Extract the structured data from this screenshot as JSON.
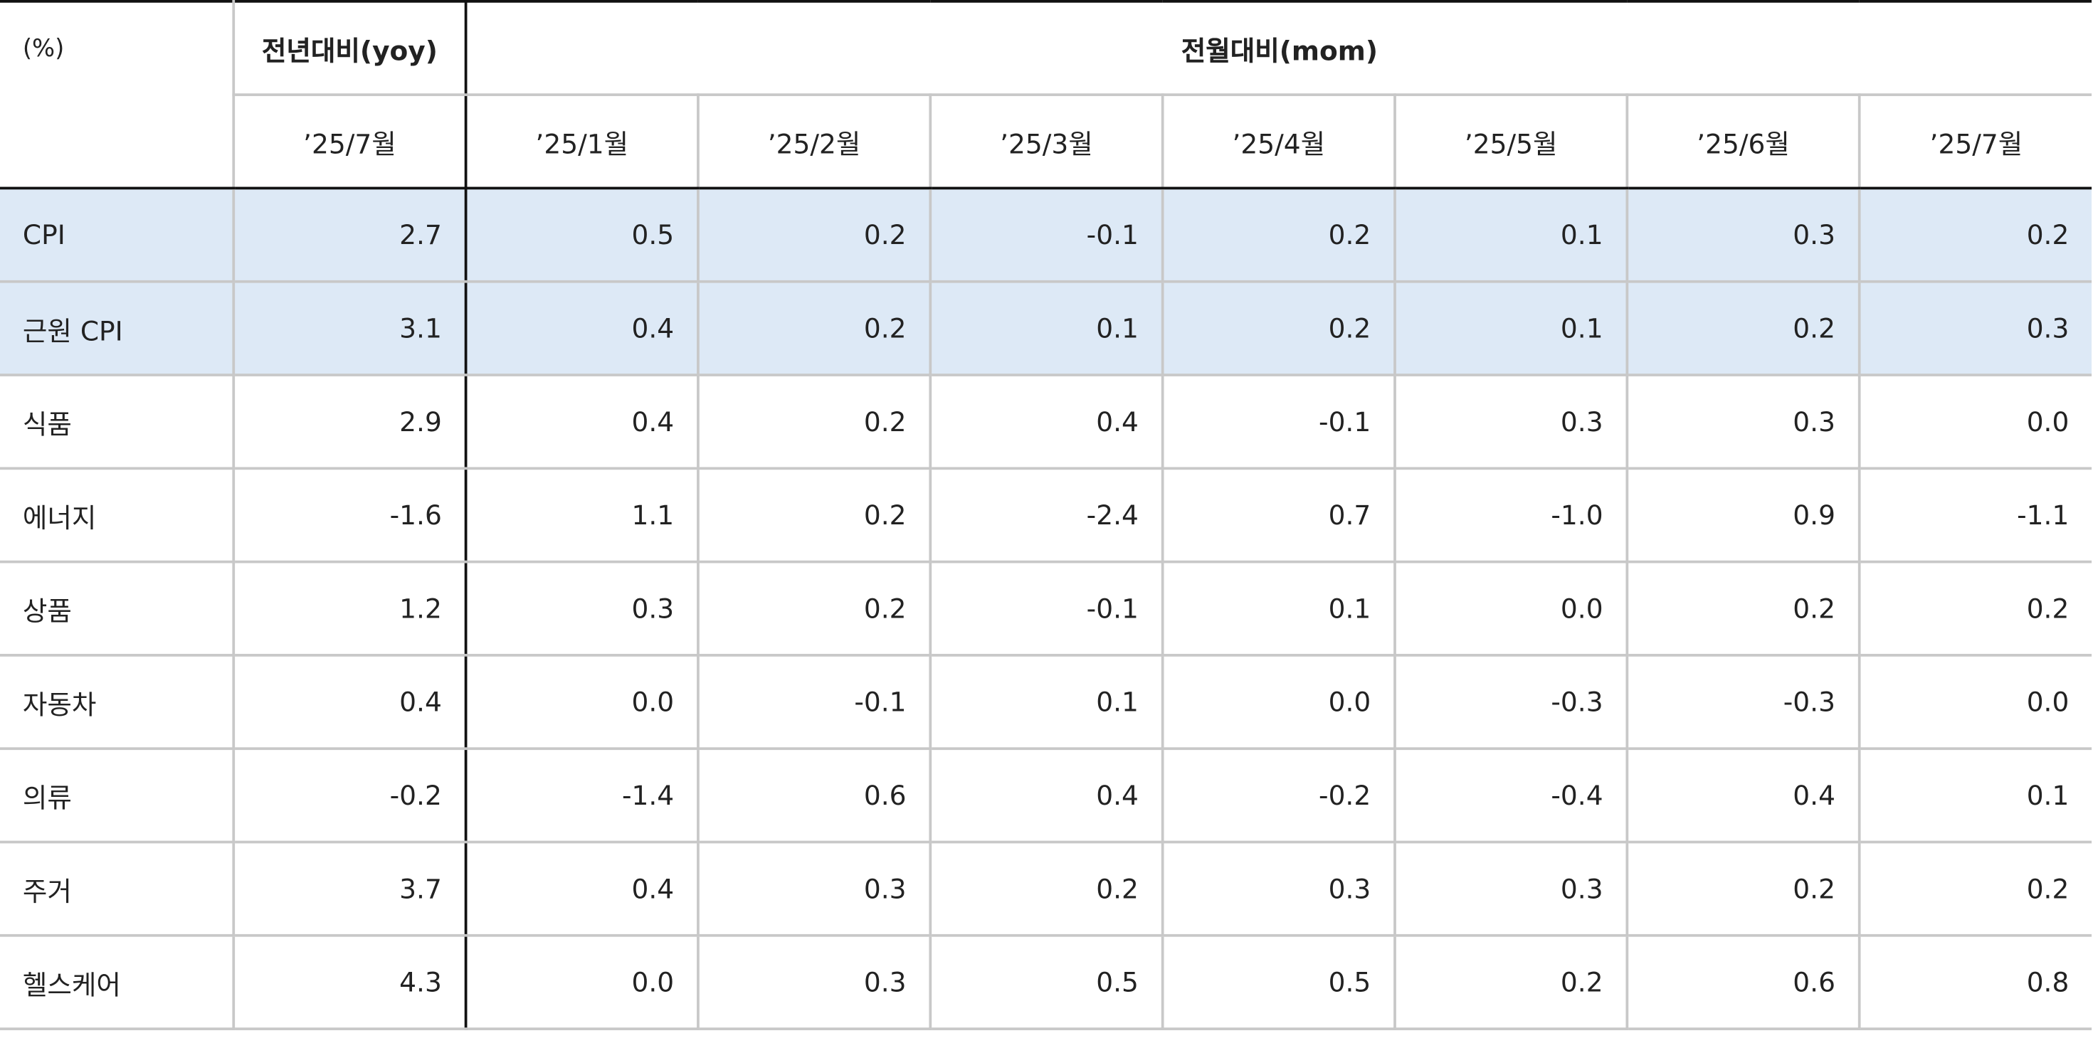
{
  "chart_data": {
    "type": "table",
    "unit_label": "(%)",
    "group_headers": [
      "전년대비(yoy)",
      "전월대비(mom)"
    ],
    "yoy_columns": [
      "’25/7월"
    ],
    "mom_columns": [
      "’25/1월",
      "’25/2월",
      "’25/3월",
      "’25/4월",
      "’25/5월",
      "’25/6월",
      "’25/7월"
    ],
    "rows": [
      {
        "label": "CPI",
        "highlight": true,
        "values": [
          "2.7",
          "0.5",
          "0.2",
          "-0.1",
          "0.2",
          "0.1",
          "0.3",
          "0.2"
        ]
      },
      {
        "label": "근원 CPI",
        "highlight": true,
        "values": [
          "3.1",
          "0.4",
          "0.2",
          "0.1",
          "0.2",
          "0.1",
          "0.2",
          "0.3"
        ]
      },
      {
        "label": "식품",
        "highlight": false,
        "values": [
          "2.9",
          "0.4",
          "0.2",
          "0.4",
          "-0.1",
          "0.3",
          "0.3",
          "0.0"
        ]
      },
      {
        "label": "에너지",
        "highlight": false,
        "values": [
          "-1.6",
          "1.1",
          "0.2",
          "-2.4",
          "0.7",
          "-1.0",
          "0.9",
          "-1.1"
        ]
      },
      {
        "label": "상품",
        "highlight": false,
        "values": [
          "1.2",
          "0.3",
          "0.2",
          "-0.1",
          "0.1",
          "0.0",
          "0.2",
          "0.2"
        ]
      },
      {
        "label": "자동차",
        "highlight": false,
        "values": [
          "0.4",
          "0.0",
          "-0.1",
          "0.1",
          "0.0",
          "-0.3",
          "-0.3",
          "0.0"
        ]
      },
      {
        "label": "의류",
        "highlight": false,
        "values": [
          "-0.2",
          "-1.4",
          "0.6",
          "0.4",
          "-0.2",
          "-0.4",
          "0.4",
          "0.1"
        ]
      },
      {
        "label": "주거",
        "highlight": false,
        "values": [
          "3.7",
          "0.4",
          "0.3",
          "0.2",
          "0.3",
          "0.3",
          "0.2",
          "0.2"
        ]
      },
      {
        "label": "헬스케어",
        "highlight": false,
        "values": [
          "4.3",
          "0.0",
          "0.3",
          "0.5",
          "0.5",
          "0.2",
          "0.6",
          "0.8"
        ]
      }
    ],
    "colors": {
      "highlight_row": "#dde9f6",
      "rule": "#111111",
      "grid": "#c8c8c8"
    }
  }
}
